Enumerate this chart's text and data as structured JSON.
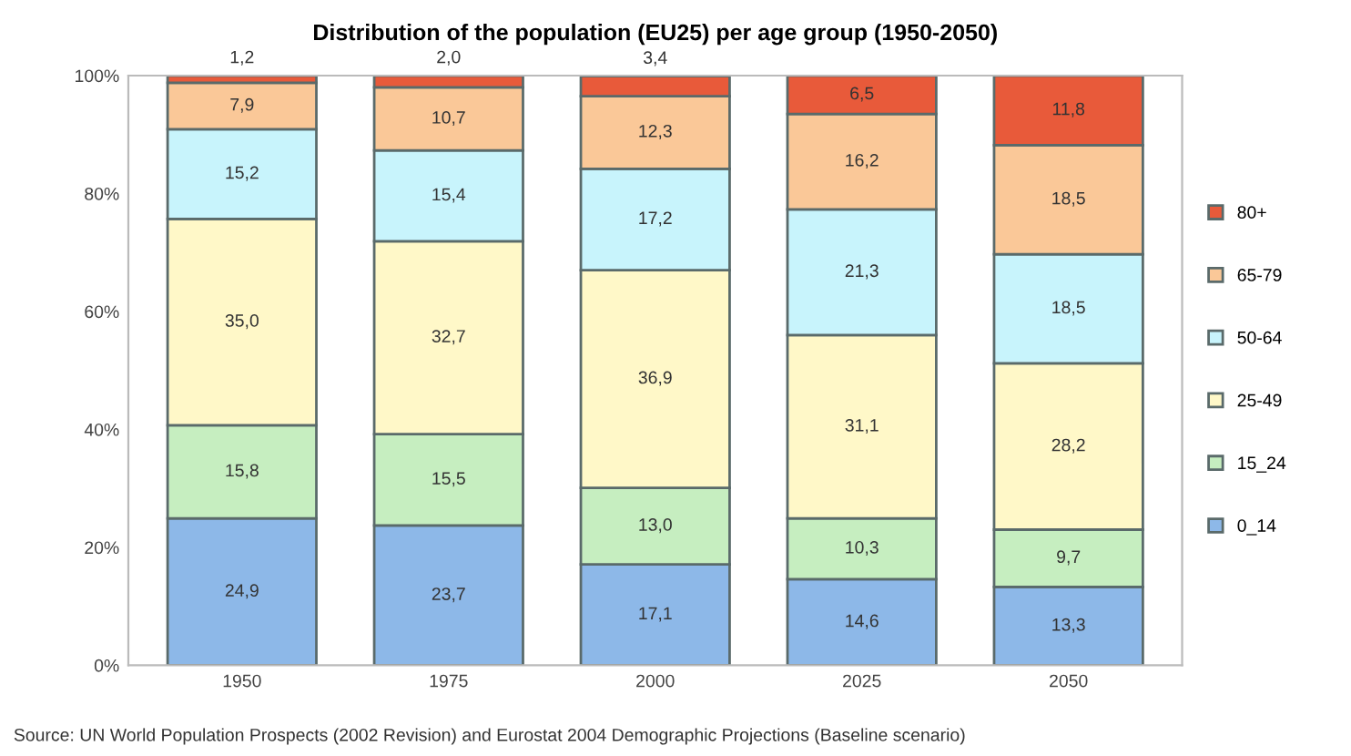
{
  "chart_data": {
    "type": "bar",
    "stacked": true,
    "title": "Distribution of the population (EU25) per age group (1950-2050)",
    "categories": [
      "1950",
      "1975",
      "2000",
      "2025",
      "2050"
    ],
    "series": [
      {
        "name": "0_14",
        "color": "#8db8e8",
        "values": [
          24.9,
          23.7,
          17.1,
          14.6,
          13.3
        ],
        "value_labels": [
          "24,9",
          "23,7",
          "17,1",
          "14,6",
          "13,3"
        ]
      },
      {
        "name": "15_24",
        "color": "#c6eec0",
        "values": [
          15.8,
          15.5,
          13.0,
          10.3,
          9.7
        ],
        "value_labels": [
          "15,8",
          "15,5",
          "13,0",
          "10,3",
          "9,7"
        ]
      },
      {
        "name": "25-49",
        "color": "#fff8c8",
        "values": [
          35.0,
          32.7,
          36.9,
          31.1,
          28.2
        ],
        "value_labels": [
          "35,0",
          "32,7",
          "36,9",
          "31,1",
          "28,2"
        ]
      },
      {
        "name": "50-64",
        "color": "#c8f4fc",
        "values": [
          15.2,
          15.4,
          17.2,
          21.3,
          18.5
        ],
        "value_labels": [
          "15,2",
          "15,4",
          "17,2",
          "21,3",
          "18,5"
        ]
      },
      {
        "name": "65-79",
        "color": "#fac898",
        "values": [
          7.9,
          10.7,
          12.3,
          16.2,
          18.5
        ],
        "value_labels": [
          "7,9",
          "10,7",
          "12,3",
          "16,2",
          "18,5"
        ]
      },
      {
        "name": "80+",
        "color": "#e85a3a",
        "values": [
          1.2,
          2.0,
          3.4,
          6.5,
          11.8
        ],
        "value_labels": [
          "1,2",
          "2,0",
          "3,4",
          "6,5",
          "11,8"
        ]
      }
    ],
    "ylim": [
      0,
      100
    ],
    "yticks": [
      {
        "value": 0,
        "label": "0%"
      },
      {
        "value": 20,
        "label": "20%"
      },
      {
        "value": 40,
        "label": "40%"
      },
      {
        "value": 60,
        "label": "60%"
      },
      {
        "value": 80,
        "label": "80%"
      },
      {
        "value": 100,
        "label": "100%"
      }
    ],
    "grid": false,
    "legend": "right",
    "annotations": [
      "Source: UN World Population Prospects (2002 Revision) and Eurostat 2004 Demographic Projections (Baseline scenario)"
    ]
  }
}
